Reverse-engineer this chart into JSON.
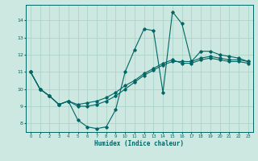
{
  "xlabel": "Humidex (Indice chaleur)",
  "background_color": "#cce8e0",
  "grid_color": "#aad4c8",
  "line_color": "#006666",
  "x_ticks": [
    0,
    1,
    2,
    3,
    4,
    5,
    6,
    7,
    8,
    9,
    10,
    11,
    12,
    13,
    14,
    15,
    16,
    17,
    18,
    19,
    20,
    21,
    22,
    23
  ],
  "y_ticks": [
    8,
    9,
    10,
    11,
    12,
    13,
    14
  ],
  "ylim": [
    7.5,
    14.9
  ],
  "xlim": [
    -0.5,
    23.5
  ],
  "series": [
    [
      11.0,
      10.0,
      9.6,
      9.1,
      9.3,
      8.2,
      7.8,
      7.7,
      7.8,
      8.8,
      11.0,
      12.3,
      13.5,
      13.4,
      9.8,
      14.5,
      13.8,
      11.6,
      12.2,
      12.2,
      12.0,
      11.9,
      11.8,
      11.6
    ],
    [
      11.0,
      10.0,
      9.6,
      9.1,
      9.3,
      9.0,
      9.0,
      9.1,
      9.3,
      9.6,
      10.0,
      10.4,
      10.8,
      11.1,
      11.4,
      11.6,
      11.6,
      11.6,
      11.8,
      11.9,
      11.8,
      11.7,
      11.7,
      11.6
    ],
    [
      11.0,
      10.0,
      9.6,
      9.1,
      9.3,
      9.1,
      9.2,
      9.3,
      9.5,
      9.8,
      10.2,
      10.5,
      10.9,
      11.2,
      11.5,
      11.7,
      11.5,
      11.5,
      11.7,
      11.8,
      11.7,
      11.6,
      11.6,
      11.5
    ]
  ]
}
